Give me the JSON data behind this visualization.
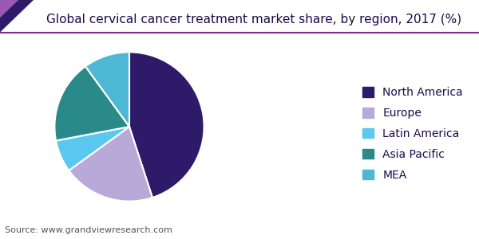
{
  "title": "Global cervical cancer treatment market share, by region, 2017 (%)",
  "source": "Source: www.grandviewresearch.com",
  "labels": [
    "North America",
    "Europe",
    "Latin America",
    "Asia Pacific",
    "MEA"
  ],
  "values": [
    45.0,
    20.0,
    7.0,
    18.0,
    10.0
  ],
  "colors": [
    "#2d1b69",
    "#b8a9d9",
    "#5bc8f0",
    "#2a8a8a",
    "#4db8d4"
  ],
  "startangle": 90,
  "background_color": "#ffffff",
  "title_fontsize": 11,
  "source_fontsize": 8,
  "legend_fontsize": 10,
  "title_color": "#1a0a4a",
  "header_line_color": "#7b2d8b",
  "header_triangle_color1": "#2d1b69",
  "header_triangle_color2": "#9b59b6"
}
